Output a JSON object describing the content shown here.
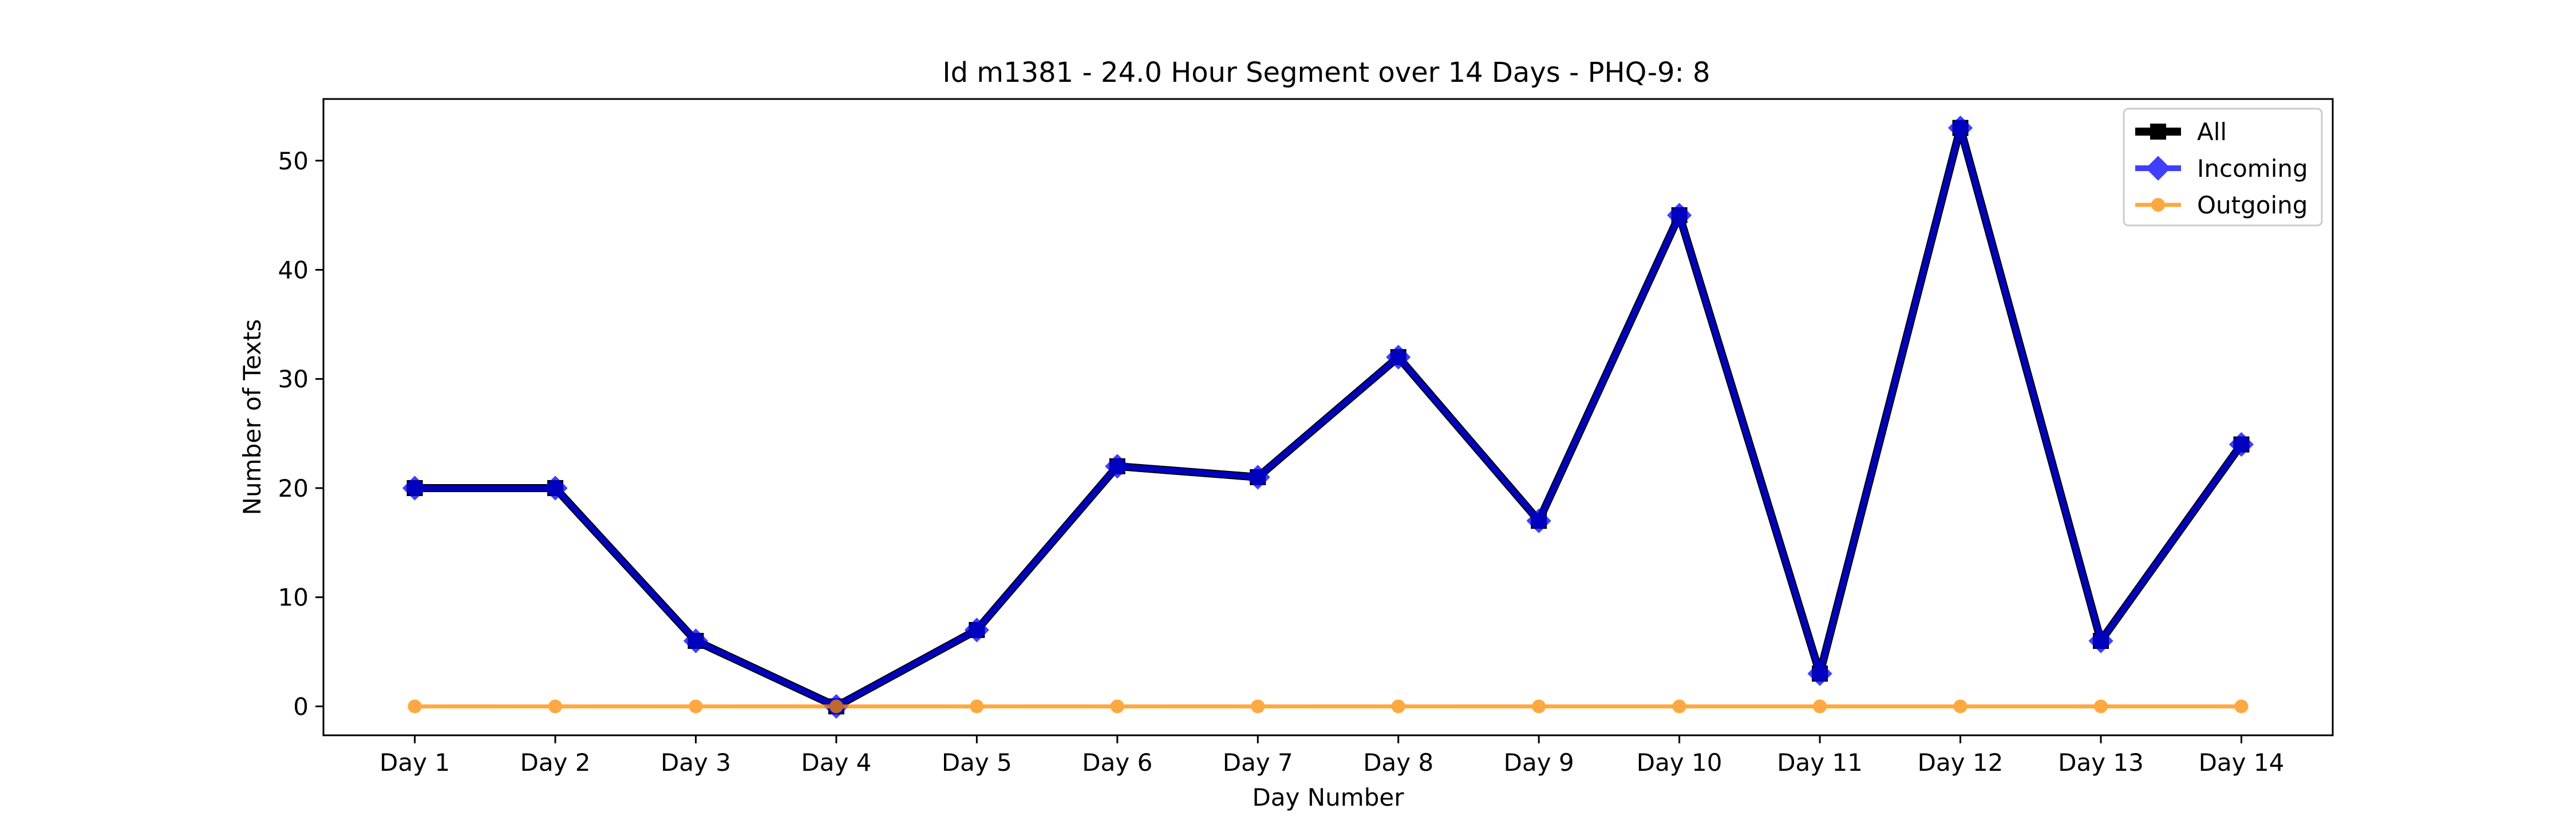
{
  "chart_data": {
    "type": "line",
    "title": "Id m1381 - 24.0 Hour Segment over 14 Days - PHQ-9: 8",
    "xlabel": "Day Number",
    "ylabel": "Number of Texts",
    "categories": [
      "Day 1",
      "Day 2",
      "Day 3",
      "Day 4",
      "Day 5",
      "Day 6",
      "Day 7",
      "Day 8",
      "Day 9",
      "Day 10",
      "Day 11",
      "Day 12",
      "Day 13",
      "Day 14"
    ],
    "ylim": [
      -2.65,
      55.65
    ],
    "yticks": [
      0,
      10,
      20,
      30,
      40,
      50
    ],
    "grid": false,
    "legend_position": "top-right",
    "series": [
      {
        "name": "All",
        "color": "#000000",
        "marker": "square",
        "values": [
          20,
          20,
          6,
          0,
          7,
          22,
          21,
          32,
          17,
          45,
          3,
          53,
          6,
          24
        ]
      },
      {
        "name": "Incoming",
        "color": "#0000ff",
        "marker": "diamond",
        "values": [
          20,
          20,
          6,
          0,
          7,
          22,
          21,
          32,
          17,
          45,
          3,
          53,
          6,
          24
        ]
      },
      {
        "name": "Outgoing",
        "color": "#ff8c00",
        "marker": "circle",
        "values": [
          0,
          0,
          0,
          0,
          0,
          0,
          0,
          0,
          0,
          0,
          0,
          0,
          0,
          0
        ]
      }
    ]
  }
}
